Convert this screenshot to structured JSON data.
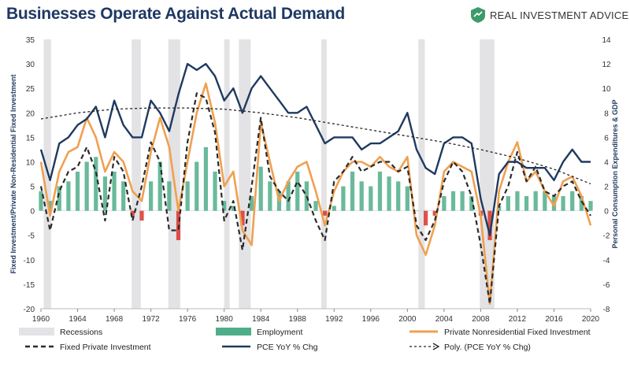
{
  "header": {
    "title": "Businesses Operate Against Actual Demand",
    "brand": "REAL INVESTMENT ADVICE"
  },
  "colors": {
    "recession": "#e3e3e6",
    "employment": "#4fae8a",
    "employment_negative": "#d9342b",
    "private_nonres": "#f0a050",
    "fixed_private": "#2b2b2b",
    "pce": "#1f3a5f",
    "poly": "#222222",
    "title": "#1f3864",
    "brand_icon": "#3d9a6a"
  },
  "chart_data": {
    "type": "line",
    "title": "Businesses Operate Against Actual Demand",
    "xlabel": "",
    "ylabel_left": "Fixed Investment/Private Non-Residential Fixed Investment",
    "ylabel_right": "Personal Consumption Expenditures & GDP",
    "xlim": [
      1960,
      2020
    ],
    "ylim_left": [
      -20,
      35
    ],
    "ylim_right": [
      -8,
      14
    ],
    "x_ticks": [
      "1960",
      "1964",
      "1968",
      "1972",
      "1976",
      "1980",
      "1984",
      "1988",
      "1992",
      "1996",
      "2000",
      "2004",
      "2008",
      "2012",
      "2016",
      "2020"
    ],
    "y_ticks_left": [
      "35",
      "30",
      "25",
      "20",
      "15",
      "10",
      "5",
      "0",
      "-5",
      "-10",
      "-15",
      "-20"
    ],
    "y_ticks_right": [
      "14",
      "12",
      "10",
      "8",
      "6",
      "4",
      "2",
      "0",
      "-2",
      "-4",
      "-6",
      "-8"
    ],
    "recessions": [
      [
        1960.3,
        1961.1
      ],
      [
        1969.9,
        1970.9
      ],
      [
        1973.9,
        1975.2
      ],
      [
        1980.0,
        1980.6
      ],
      [
        1981.6,
        1982.9
      ],
      [
        1990.6,
        1991.2
      ],
      [
        2001.2,
        2001.9
      ],
      [
        2007.9,
        2009.5
      ]
    ],
    "legend": [
      {
        "label": "Recessions"
      },
      {
        "label": "Employment"
      },
      {
        "label": "Private Nonresidential Fixed Investment"
      },
      {
        "label": "Fixed Private Investment"
      },
      {
        "label": "PCE YoY % Chg"
      },
      {
        "label": "Poly. (PCE YoY % Chg)"
      }
    ],
    "series": [
      {
        "name": "Employment",
        "axis": "left",
        "style": "bars",
        "x": [
          1960,
          1961,
          1962,
          1963,
          1964,
          1965,
          1966,
          1967,
          1968,
          1969,
          1970,
          1971,
          1972,
          1973,
          1974,
          1975,
          1976,
          1977,
          1978,
          1979,
          1980,
          1981,
          1982,
          1983,
          1984,
          1985,
          1986,
          1987,
          1988,
          1989,
          1990,
          1991,
          1992,
          1993,
          1994,
          1995,
          1996,
          1997,
          1998,
          1999,
          2000,
          2001,
          2002,
          2003,
          2004,
          2005,
          2006,
          2007,
          2008,
          2009,
          2010,
          2011,
          2012,
          2013,
          2014,
          2015,
          2016,
          2017,
          2018,
          2019,
          2020
        ],
        "values": [
          4,
          2,
          5,
          6,
          8,
          10,
          11,
          7,
          8,
          6,
          -1,
          -2,
          6,
          10,
          6,
          -6,
          6,
          10,
          13,
          8,
          2,
          1,
          -3,
          3,
          9,
          6,
          4,
          6,
          8,
          6,
          2,
          -1,
          1,
          5,
          8,
          6,
          5,
          8,
          7,
          6,
          5,
          0,
          -3,
          -1,
          3,
          4,
          4,
          3,
          -1,
          -6,
          1,
          3,
          4,
          3,
          4,
          4,
          3,
          3,
          4,
          3,
          2
        ]
      },
      {
        "name": "Private Nonresidential Fixed Investment",
        "axis": "left",
        "x": [
          1960,
          1961,
          1962,
          1963,
          1964,
          1965,
          1966,
          1967,
          1968,
          1969,
          1970,
          1971,
          1972,
          1973,
          1974,
          1975,
          1976,
          1977,
          1978,
          1979,
          1980,
          1981,
          1982,
          1983,
          1984,
          1985,
          1986,
          1987,
          1988,
          1989,
          1990,
          1991,
          1992,
          1993,
          1994,
          1995,
          1996,
          1997,
          1998,
          1999,
          2000,
          2001,
          2002,
          2003,
          2004,
          2005,
          2006,
          2007,
          2008,
          2009,
          2010,
          2011,
          2012,
          2013,
          2014,
          2015,
          2016,
          2017,
          2018,
          2019,
          2020
        ],
        "values": [
          10,
          -1,
          8,
          12,
          13,
          19,
          15,
          8,
          12,
          10,
          4,
          2,
          12,
          19,
          13,
          0,
          10,
          20,
          26,
          18,
          5,
          8,
          -4,
          -7,
          18,
          10,
          2,
          6,
          9,
          10,
          4,
          -3,
          4,
          8,
          10,
          10,
          9,
          11,
          9,
          8,
          11,
          -5,
          -9,
          -3,
          8,
          10,
          9,
          8,
          -1,
          -19,
          4,
          10,
          14,
          6,
          8,
          4,
          1,
          6,
          7,
          3,
          -3
        ]
      },
      {
        "name": "Fixed Private Investment",
        "axis": "left",
        "style": "dashed",
        "x": [
          1960,
          1961,
          1962,
          1963,
          1964,
          1965,
          1966,
          1967,
          1968,
          1969,
          1970,
          1971,
          1972,
          1973,
          1974,
          1975,
          1976,
          1977,
          1978,
          1979,
          1980,
          1981,
          1982,
          1983,
          1984,
          1985,
          1986,
          1987,
          1988,
          1989,
          1990,
          1991,
          1992,
          1993,
          1994,
          1995,
          1996,
          1997,
          1998,
          1999,
          2000,
          2001,
          2002,
          2003,
          2004,
          2005,
          2006,
          2007,
          2008,
          2009,
          2010,
          2011,
          2012,
          2013,
          2014,
          2015,
          2016,
          2017,
          2018,
          2019,
          2020
        ],
        "values": [
          5,
          -4,
          4,
          8,
          9,
          13,
          8,
          -2,
          11,
          8,
          -2,
          5,
          14,
          10,
          -4,
          -4,
          14,
          24,
          23,
          16,
          -2,
          2,
          -8,
          5,
          19,
          7,
          4,
          2,
          6,
          3,
          -2,
          -6,
          6,
          8,
          11,
          8,
          9,
          10,
          10,
          8,
          9,
          -3,
          -6,
          -2,
          6,
          10,
          8,
          3,
          -7,
          -19,
          1,
          5,
          12,
          6,
          9,
          4,
          3,
          5,
          6,
          2,
          -1
        ]
      },
      {
        "name": "PCE YoY % Chg",
        "axis": "right",
        "x": [
          1960,
          1961,
          1962,
          1963,
          1964,
          1965,
          1966,
          1967,
          1968,
          1969,
          1970,
          1971,
          1972,
          1973,
          1974,
          1975,
          1976,
          1977,
          1978,
          1979,
          1980,
          1981,
          1982,
          1983,
          1984,
          1985,
          1986,
          1987,
          1988,
          1989,
          1990,
          1991,
          1992,
          1993,
          1994,
          1995,
          1996,
          1997,
          1998,
          1999,
          2000,
          2001,
          2002,
          2003,
          2004,
          2005,
          2006,
          2007,
          2008,
          2009,
          2010,
          2011,
          2012,
          2013,
          2014,
          2015,
          2016,
          2017,
          2018,
          2019,
          2020
        ],
        "values": [
          5,
          2.5,
          5.5,
          6,
          7,
          7.5,
          8.5,
          6,
          9,
          7,
          6,
          6,
          9,
          8,
          6.5,
          9.5,
          12,
          11.5,
          12,
          11,
          9,
          10,
          8,
          10,
          11,
          10,
          9,
          8,
          8,
          8.5,
          7,
          5.5,
          6,
          6,
          6,
          5,
          5.5,
          5.5,
          6,
          6.5,
          8,
          5,
          3.5,
          3,
          5.5,
          6,
          6,
          5.5,
          1,
          -2,
          3,
          4,
          4,
          3.5,
          3.5,
          3.5,
          2.5,
          4,
          5,
          4,
          4
        ]
      },
      {
        "name": "Poly. (PCE YoY % Chg)",
        "axis": "right",
        "style": "dashed",
        "x": [
          1960,
          1964,
          1968,
          1972,
          1976,
          1980,
          1984,
          1988,
          1992,
          1996,
          2000,
          2004,
          2008,
          2012,
          2016,
          2020
        ],
        "values": [
          7.5,
          8,
          8.3,
          8.4,
          8.4,
          8.3,
          8.0,
          7.6,
          7.1,
          6.6,
          6.1,
          5.6,
          5.0,
          4.3,
          3.4,
          2.2
        ]
      }
    ]
  }
}
